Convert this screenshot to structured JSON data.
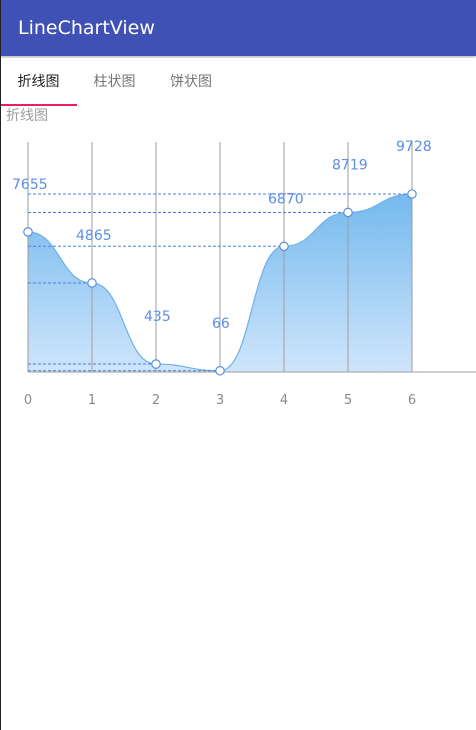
{
  "app_bar": {
    "title": "LineChartView"
  },
  "tabs": [
    {
      "label": "折线图",
      "active": true
    },
    {
      "label": "柱状图",
      "active": false
    },
    {
      "label": "饼状图",
      "active": false
    }
  ],
  "chart_label": "折线图",
  "colors": {
    "app_bar": "#3f51b5",
    "indicator": "#e91e63",
    "line": "#6fb2ea",
    "area_top": "#74b9ee",
    "area_bottom": "#cfe5fb",
    "guide": "#4a7fe0",
    "value_label": "#5b8ee6"
  },
  "chart_data": {
    "type": "area",
    "title": "",
    "xlabel": "",
    "ylabel": "",
    "x": [
      0,
      1,
      2,
      3,
      4,
      5,
      6
    ],
    "values": [
      7655,
      4865,
      435,
      66,
      6870,
      8719,
      9728
    ],
    "value_labels": [
      "7655",
      "4865",
      "435",
      "66",
      "6870",
      "8719",
      "9728"
    ],
    "x_tick_labels": [
      "0",
      "1",
      "2",
      "3",
      "4",
      "5",
      "6"
    ],
    "ylim": [
      0,
      12500
    ],
    "grid": "vertical",
    "legend": "none"
  }
}
